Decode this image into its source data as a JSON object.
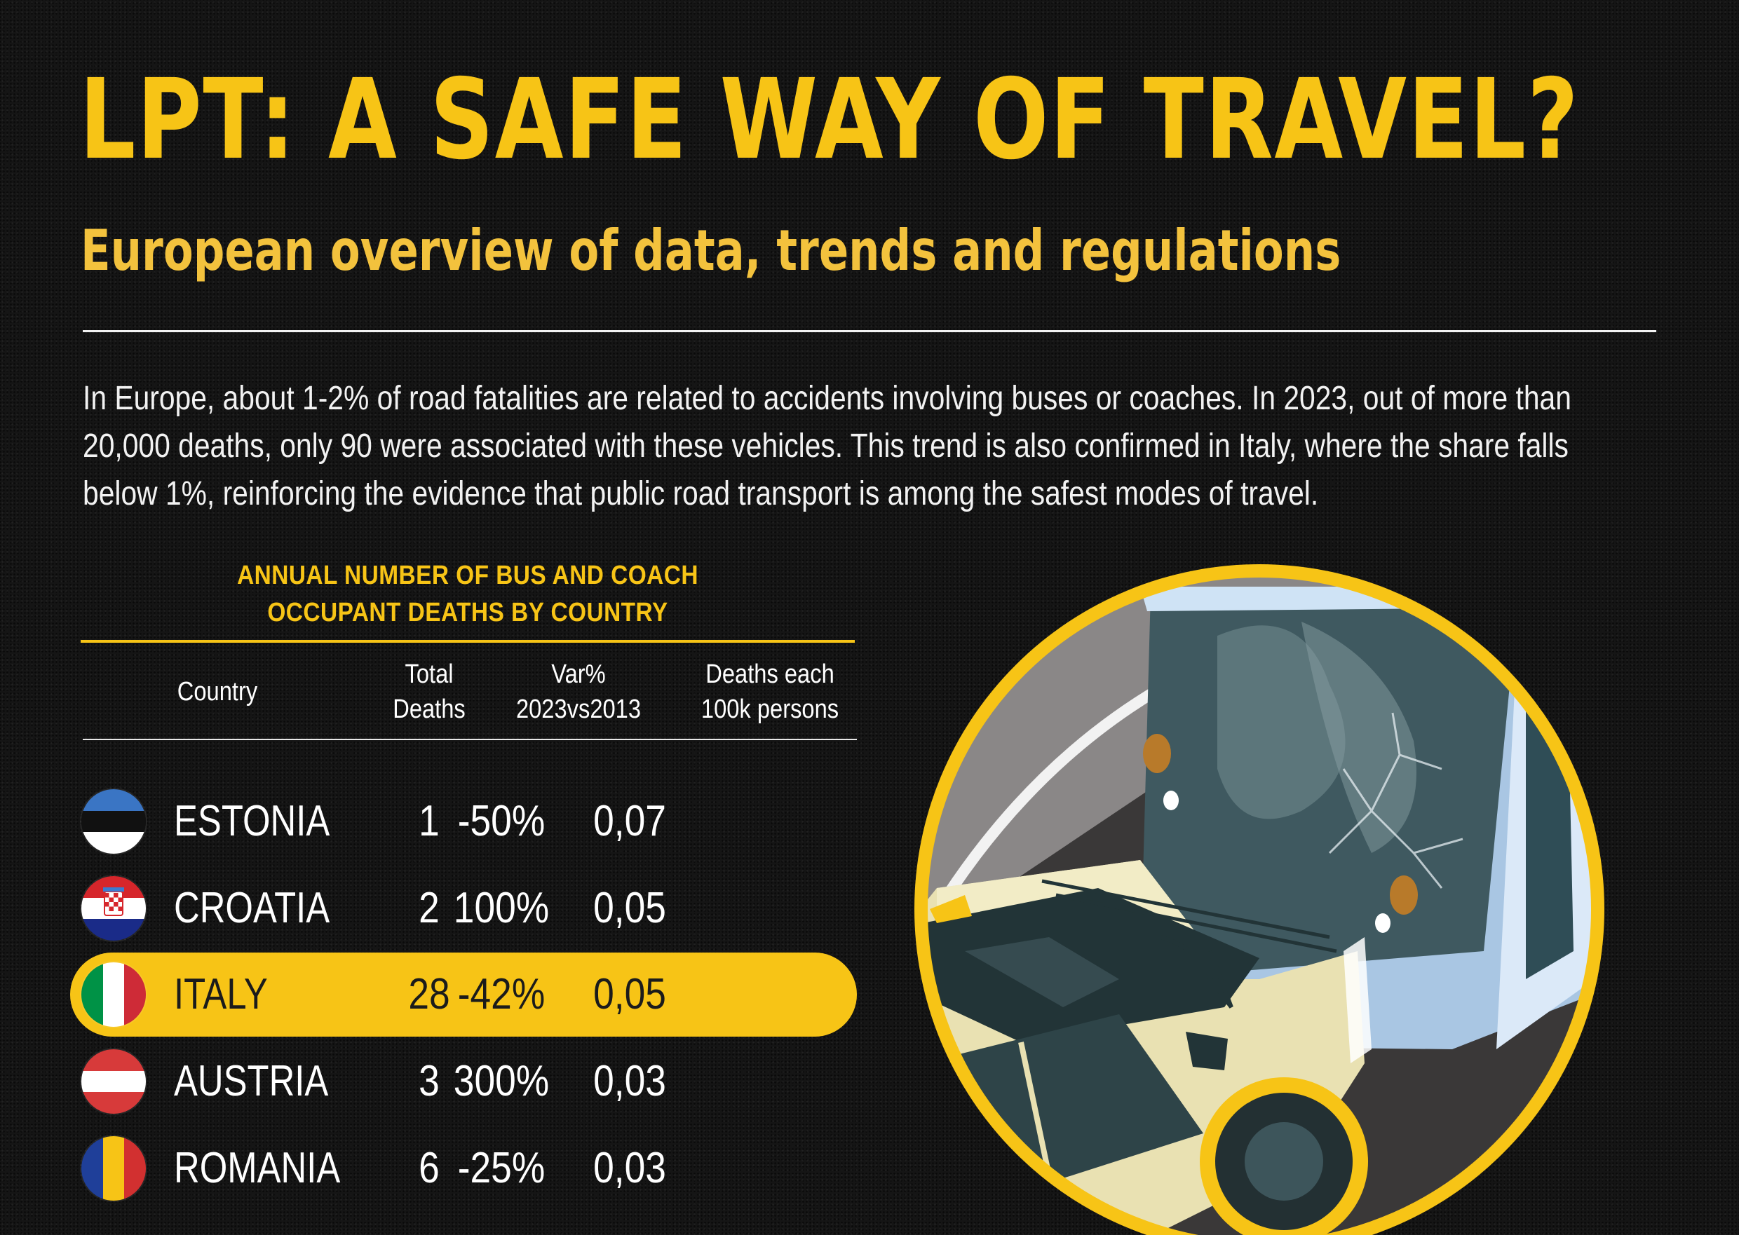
{
  "header": {
    "title": "LPT: A SAFE WAY OF TRAVEL?",
    "subtitle": "European overview of data, trends and regulations"
  },
  "intro": {
    "text": "In Europe, about 1-2% of road fatalities are related to accidents involving buses or coaches. In 2023, out of more than 20,000 deaths, only 90 were associated with these vehicles. This trend is also confirmed in Italy, where the share falls below 1%, reinforcing the evidence that public road transport is among the safest modes of travel."
  },
  "chart_data": {
    "type": "table",
    "title_line1": "ANNUAL NUMBER OF BUS AND COACH",
    "title_line2": "OCCUPANT DEATHS BY COUNTRY",
    "columns": [
      {
        "line1": "Country",
        "line2": ""
      },
      {
        "line1": "Total",
        "line2": "Deaths"
      },
      {
        "line1": "Var%",
        "line2": "2023vs2013"
      },
      {
        "line1": "Deaths each",
        "line2": "100k persons"
      }
    ],
    "rows": [
      {
        "country": "ESTONIA",
        "total": "1",
        "var": "-50%",
        "per100k": "0,07",
        "highlight": false,
        "flag": "estonia-flag"
      },
      {
        "country": "CROATIA",
        "total": "2",
        "var": "100%",
        "per100k": "0,05",
        "highlight": false,
        "flag": "croatia-flag"
      },
      {
        "country": "ITALY",
        "total": "28",
        "var": "-42%",
        "per100k": "0,05",
        "highlight": true,
        "flag": "italy-flag"
      },
      {
        "country": "AUSTRIA",
        "total": "3",
        "var": "300%",
        "per100k": "0,03",
        "highlight": false,
        "flag": "austria-flag"
      },
      {
        "country": "ROMANIA",
        "total": "6",
        "var": "-25%",
        "per100k": "0,03",
        "highlight": false,
        "flag": "romania-flag"
      }
    ]
  },
  "colors": {
    "accent_yellow": "#f7c416",
    "background": "#151515",
    "highlight_text": "#1b1b1b"
  },
  "illustration": {
    "icon": "bus-car-collision-icon"
  }
}
